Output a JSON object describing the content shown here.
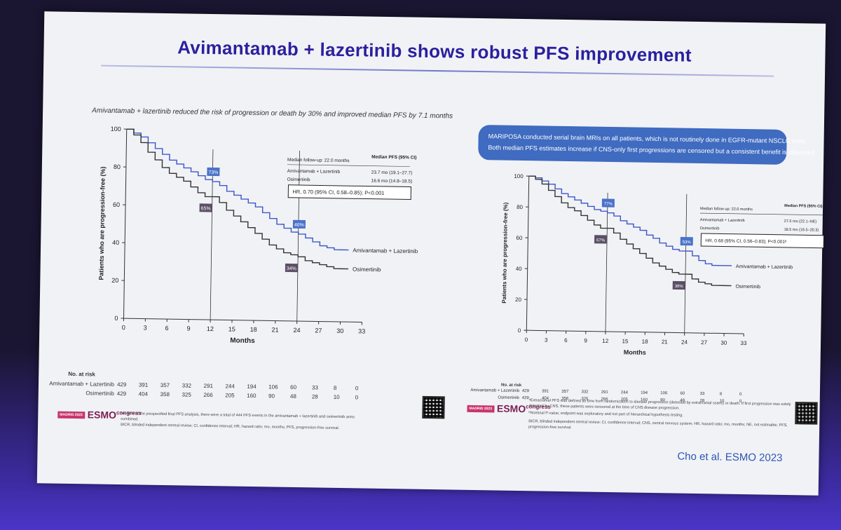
{
  "slide": {
    "title": "Avimantamab + lazertinib shows robust PFS improvement",
    "subtitle": "Amivantamab + lazertinib reduced the risk of progression or death by 30% and improved median PFS by 7.1 months",
    "callout": {
      "line1": "MARIPOSA conducted serial brain MRIs on all patients, which is not routinely done in EGFR-mutant NSCLC trials",
      "line2": "Both median PFS estimates increase if CNS-only first progressions are censored but a consistent benefit is observed"
    },
    "citation": "Cho et al. ESMO 2023"
  },
  "left": {
    "risk_header": "No. at risk",
    "risk_rows": [
      {
        "name": "Amivantamab + Lazertinib",
        "values": [
          "429",
          "391",
          "357",
          "332",
          "291",
          "244",
          "194",
          "106",
          "60",
          "33",
          "8",
          "0"
        ]
      },
      {
        "name": "Osimertinib",
        "values": [
          "429",
          "404",
          "358",
          "325",
          "266",
          "205",
          "160",
          "90",
          "48",
          "28",
          "10",
          "0"
        ]
      }
    ],
    "footnote1": "*At time of the prespecified final PFS analysis, there were a total of 444 PFS events in the amivantamab + lazertinib and osimertinib arms combined.",
    "footnote2": "BICR, blinded independent central review; CI, confidence interval; HR, hazard ratio; mo, months; PFS, progression-free survival.",
    "esmo_city": "MADRID 2023",
    "esmo_label": "ESMO",
    "esmo_suffix": "congress"
  },
  "right": {
    "risk_header": "No. at risk",
    "risk_rows": [
      {
        "name": "Amivantamab + Lazertinib",
        "values": [
          "429",
          "391",
          "357",
          "332",
          "291",
          "244",
          "194",
          "106",
          "60",
          "33",
          "8",
          "0"
        ]
      },
      {
        "name": "Osimertinib",
        "values": [
          "429",
          "404",
          "358",
          "325",
          "266",
          "205",
          "160",
          "90",
          "48",
          "28",
          "10",
          "0"
        ]
      }
    ],
    "footnote1": "ᵃExtracranial PFS was defined as time from randomization to disease progression (detected by extracranial scans) or death. If first progression was solely detected by CNS, these patients were censored at the time of CNS disease progression.",
    "footnote2": "ᵇNominal P-value; endpoint was exploratory and not part of hierarchical hypothesis testing.",
    "footnote3": "BICR, blinded independent central review; CI, confidence interval; CNS, central nervous system; HR, hazard ratio; mo, months; NE, not estimable; PFS, progression-free survival.",
    "esmo_city": "MADRID 2023",
    "esmo_label": "ESMO",
    "esmo_suffix": "congress"
  },
  "chart_data": [
    {
      "type": "line",
      "title": "",
      "xlabel": "Months",
      "ylabel": "Patients who are progression-free (%)",
      "xlim": [
        0,
        33
      ],
      "ylim": [
        0,
        100
      ],
      "xticks": [
        "0",
        "3",
        "6",
        "9",
        "12",
        "15",
        "18",
        "21",
        "24",
        "27",
        "30",
        "33"
      ],
      "yticks": [
        "0",
        "20",
        "40",
        "60",
        "80",
        "100"
      ],
      "series": [
        {
          "name": "Amivantamab + Lazertinib",
          "color": "#3b55c8",
          "x": [
            0,
            1,
            2,
            3,
            4,
            5,
            6,
            7,
            8,
            9,
            10,
            11,
            12,
            13,
            14,
            15,
            16,
            17,
            18,
            19,
            20,
            21,
            22,
            23,
            24,
            25,
            26,
            27,
            28,
            29,
            30,
            31
          ],
          "y": [
            100,
            98,
            96,
            93,
            90,
            87,
            84,
            82,
            80,
            78,
            76,
            74,
            73,
            71,
            68,
            66,
            64,
            62,
            60,
            57,
            54,
            51,
            49,
            47,
            46,
            44,
            42,
            40,
            39,
            38,
            38,
            38
          ]
        },
        {
          "name": "Osimertinib",
          "color": "#333333",
          "x": [
            0,
            1,
            2,
            3,
            4,
            5,
            6,
            7,
            8,
            9,
            10,
            11,
            12,
            13,
            14,
            15,
            16,
            17,
            18,
            19,
            20,
            21,
            22,
            23,
            24,
            25,
            26,
            27,
            28,
            29,
            30,
            31
          ],
          "y": [
            100,
            97,
            93,
            88,
            84,
            80,
            77,
            75,
            73,
            70,
            67,
            65,
            65,
            62,
            58,
            55,
            52,
            49,
            46,
            43,
            40,
            38,
            36,
            35,
            34,
            32,
            31,
            30,
            29,
            28,
            28,
            28
          ]
        }
      ],
      "median_followup": "Median follow-up: 22.0 months",
      "median_header": "Median PFS (95% CI)",
      "legend_rows": [
        {
          "name": "Amivantamab + Lazertinib",
          "median": "23.7 mo (19.1–27.7)"
        },
        {
          "name": "Osimertinib",
          "median": "16.6 mo (14.8–18.5)"
        }
      ],
      "hr_text": "HR, 0.70 (95% CI, 0.58–0.85); P<0.001",
      "annotations": [
        {
          "label": "73%",
          "x": 12,
          "y": 73,
          "series": "Amivantamab + Lazertinib"
        },
        {
          "label": "65%",
          "x": 12,
          "y": 65,
          "series": "Osimertinib"
        },
        {
          "label": "46%",
          "x": 24,
          "y": 46,
          "series": "Amivantamab + Lazertinib"
        },
        {
          "label": "34%",
          "x": 24,
          "y": 34,
          "series": "Osimertinib"
        }
      ]
    },
    {
      "type": "line",
      "title": "",
      "xlabel": "Months",
      "ylabel": "Patients who are progression-free (%)",
      "xlim": [
        0,
        33
      ],
      "ylim": [
        0,
        100
      ],
      "xticks": [
        "0",
        "3",
        "6",
        "9",
        "12",
        "15",
        "18",
        "21",
        "24",
        "27",
        "30",
        "33"
      ],
      "yticks": [
        "0",
        "20",
        "40",
        "60",
        "80",
        "100"
      ],
      "series": [
        {
          "name": "Amivantamab + Lazertinib",
          "color": "#3b55c8",
          "x": [
            0,
            1,
            2,
            3,
            4,
            5,
            6,
            7,
            8,
            9,
            10,
            11,
            12,
            13,
            14,
            15,
            16,
            17,
            18,
            19,
            20,
            21,
            22,
            23,
            24,
            25,
            26,
            27,
            28,
            29,
            30,
            31
          ],
          "y": [
            100,
            99,
            97,
            95,
            92,
            89,
            87,
            85,
            83,
            81,
            79,
            78,
            77,
            75,
            72,
            70,
            68,
            66,
            63,
            61,
            58,
            56,
            54,
            53,
            53,
            50,
            47,
            45,
            44,
            44,
            44,
            44
          ]
        },
        {
          "name": "Osimertinib",
          "color": "#333333",
          "x": [
            0,
            1,
            2,
            3,
            4,
            5,
            6,
            7,
            8,
            9,
            10,
            11,
            12,
            13,
            14,
            15,
            16,
            17,
            18,
            19,
            20,
            21,
            22,
            23,
            24,
            25,
            26,
            27,
            28,
            29,
            30,
            31
          ],
          "y": [
            100,
            98,
            95,
            91,
            87,
            83,
            80,
            78,
            75,
            72,
            69,
            67,
            67,
            64,
            60,
            57,
            54,
            51,
            48,
            45,
            43,
            41,
            39,
            38,
            38,
            35,
            33,
            32,
            31,
            31,
            31,
            31
          ]
        }
      ],
      "median_followup": "Median follow-up: 22.0 months",
      "median_header": "Median PFS (95% CI)",
      "legend_rows": [
        {
          "name": "Amivantamab + Lazertinib",
          "median": "27.5 mo (22.1–NE)"
        },
        {
          "name": "Osimertinib",
          "median": "18.5 mo (16.5–20.3)"
        }
      ],
      "hr_text": "HR, 0.68 (95% CI, 0.56–0.83); P<0.001ᵇ",
      "annotations": [
        {
          "label": "77%",
          "x": 12,
          "y": 77,
          "series": "Amivantamab + Lazertinib"
        },
        {
          "label": "67%",
          "x": 12,
          "y": 67,
          "series": "Osimertinib"
        },
        {
          "label": "53%",
          "x": 24,
          "y": 53,
          "series": "Amivantamab + Lazertinib"
        },
        {
          "label": "38%",
          "x": 24,
          "y": 38,
          "series": "Osimertinib"
        }
      ]
    }
  ]
}
